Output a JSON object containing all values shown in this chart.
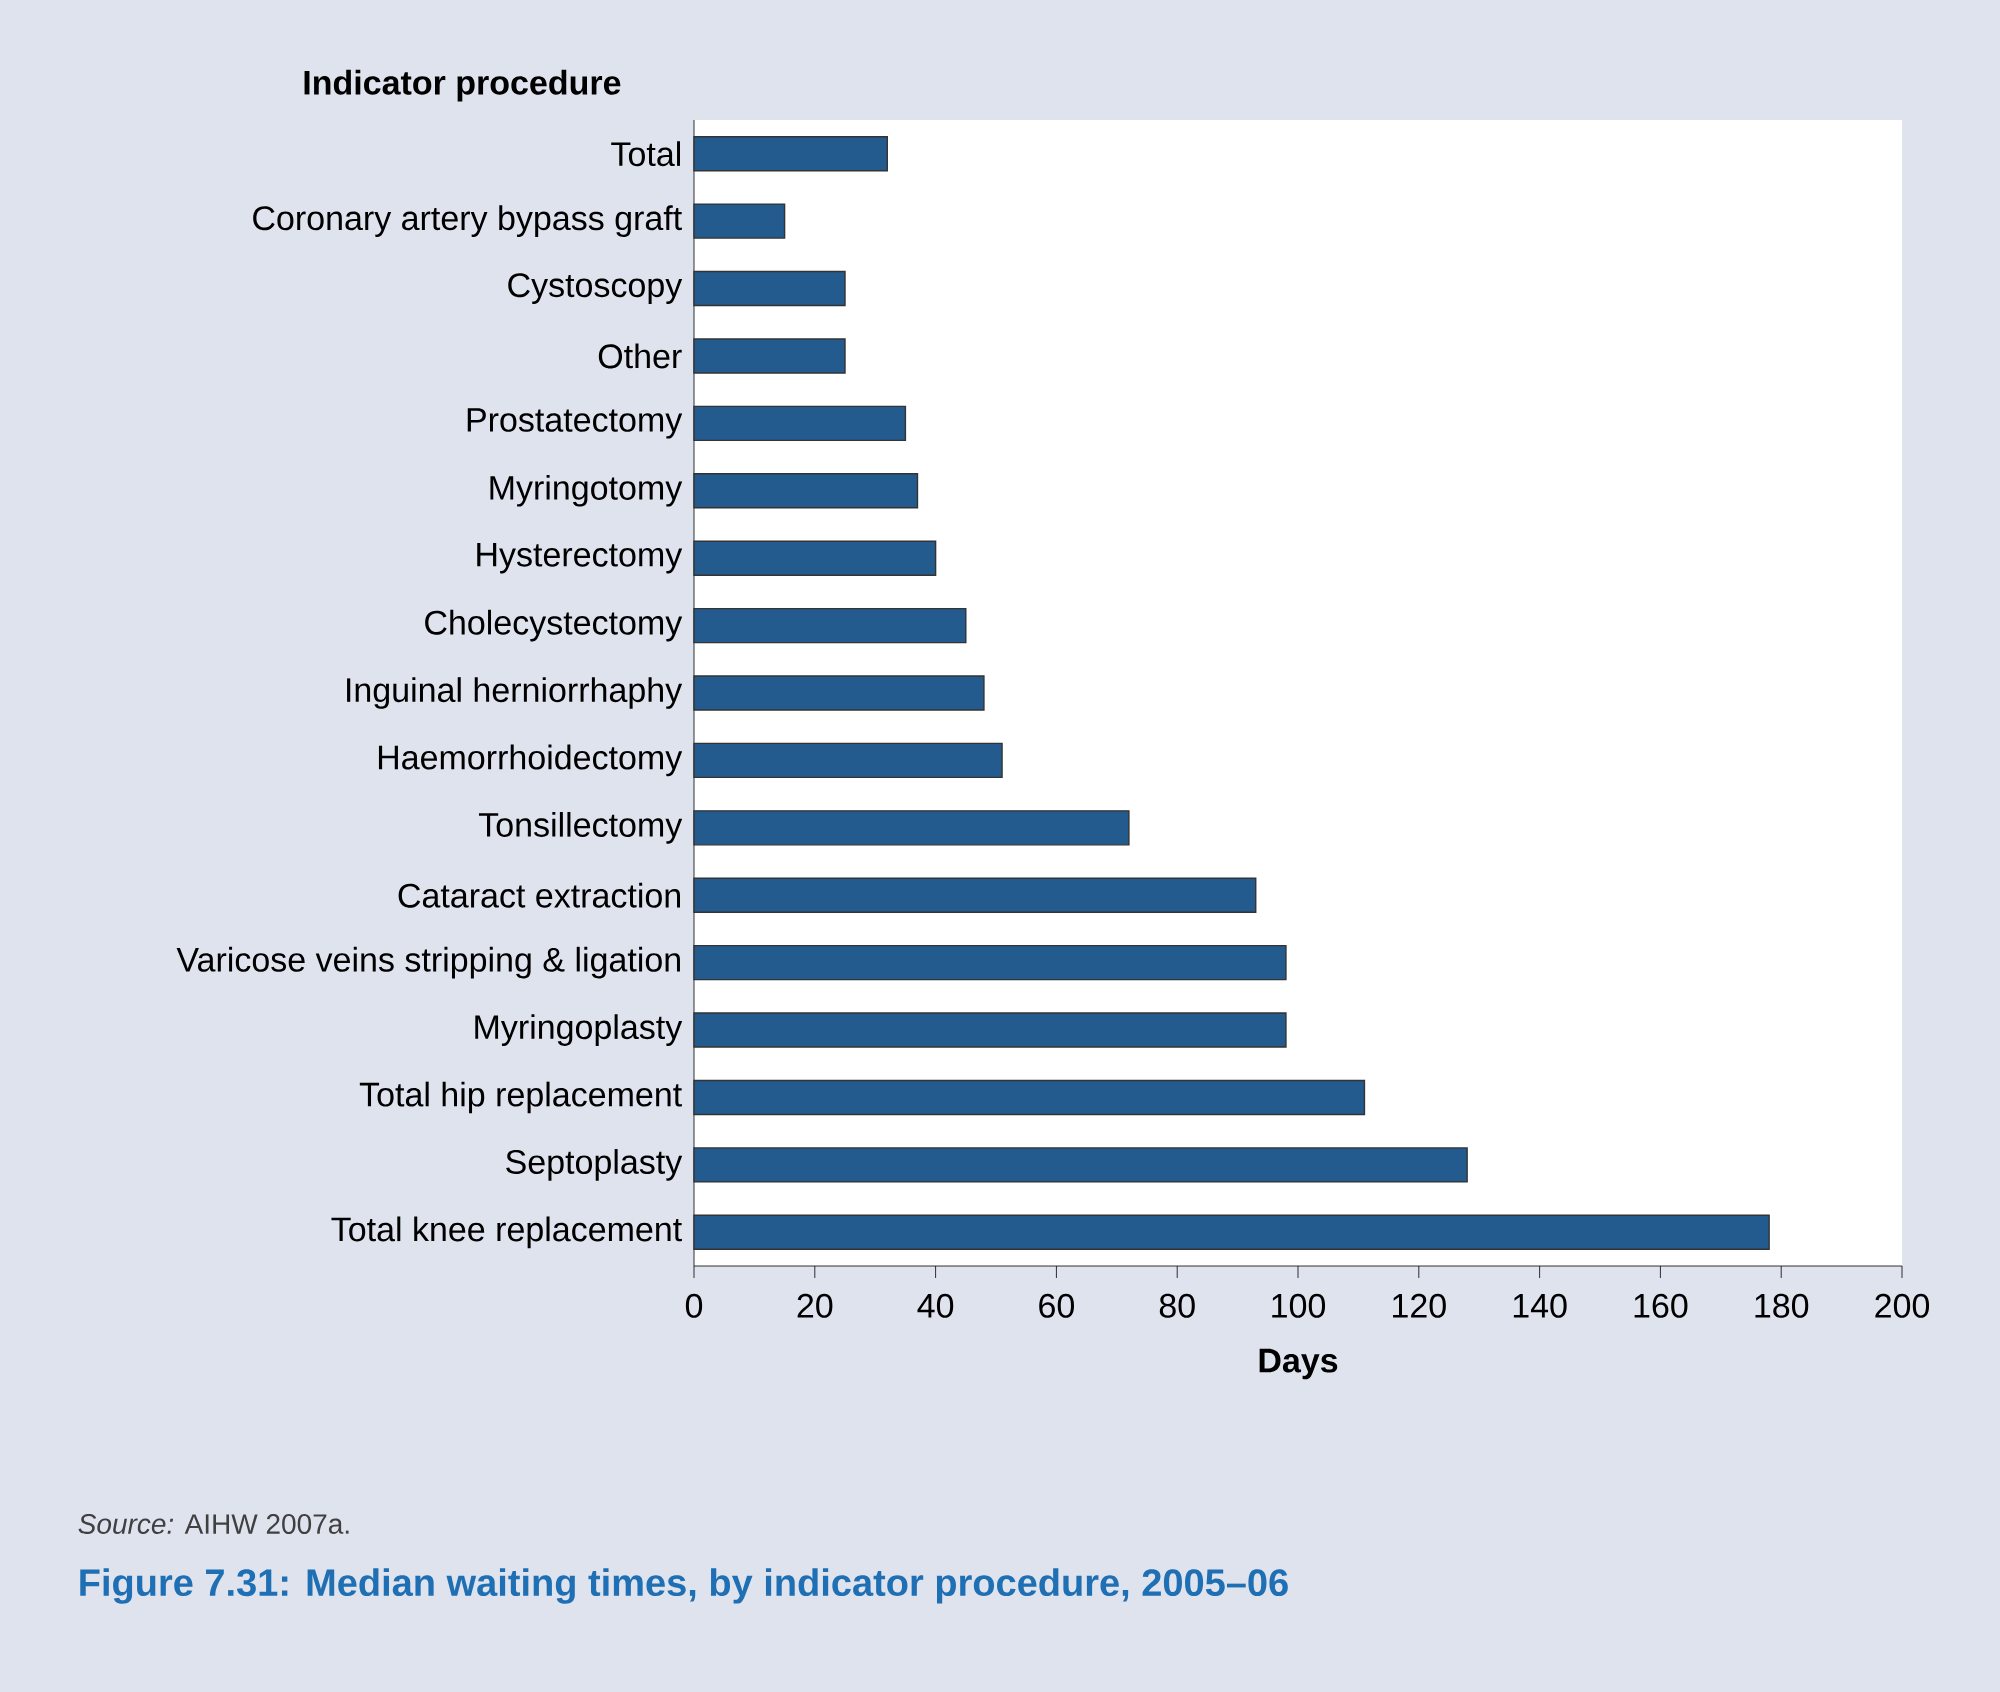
{
  "chart_data": {
    "type": "bar",
    "orientation": "horizontal",
    "title": "Figure 7.31: Median waiting times, by indicator procedure, 2005–06",
    "xlabel": "Days",
    "ylabel": "Indicator procedure",
    "annotations": [
      "*Source:* AIHW 2007a."
    ],
    "categories": [
      "Total",
      "Coronary artery bypass graft",
      "Cystoscopy",
      "Other",
      "Prostatectomy",
      "Myringotomy",
      "Hysterectomy",
      "Cholecystectomy",
      "Inguinal herniorrhaphy",
      "Haemorrhoidectomy",
      "Tonsillectomy",
      "Cataract extraction",
      "Varicose veins stripping & ligation",
      "Myringoplasty",
      "Total hip replacement",
      "Septoplasty",
      "Total knee replacement"
    ],
    "values": [
      32,
      15,
      25,
      25,
      35,
      37,
      40,
      45,
      48,
      51,
      72,
      93,
      98,
      98,
      111,
      128,
      178
    ],
    "color": "#235b8e",
    "xlim": [
      0,
      200
    ],
    "xticks": [
      0,
      20,
      40,
      60,
      80,
      100,
      120,
      140,
      160,
      180,
      200
    ]
  }
}
